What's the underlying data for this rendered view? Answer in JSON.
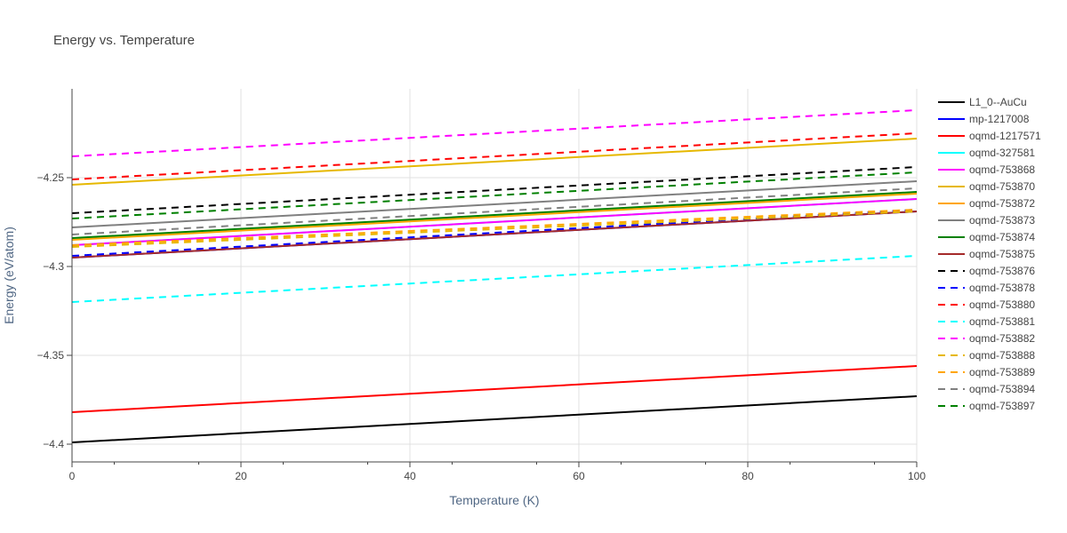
{
  "chart_data": {
    "type": "line",
    "title": "Energy vs. Temperature",
    "xlabel": "Temperature (K)",
    "ylabel": "Energy (eV/atom)",
    "xlim": [
      0,
      100
    ],
    "ylim": [
      -4.41,
      -4.2
    ],
    "x_ticks": [
      0,
      20,
      40,
      60,
      80,
      100
    ],
    "x_tick_labels": [
      "0",
      "20",
      "40",
      "60",
      "80",
      "100"
    ],
    "y_ticks": [
      -4.4,
      -4.35,
      -4.3,
      -4.25
    ],
    "y_tick_labels": [
      "−4.4",
      "−4.35",
      "−4.3",
      "−4.25"
    ],
    "grid": true,
    "legend_position": "right",
    "series": [
      {
        "name": "L1_0--AuCu",
        "color": "#000000",
        "dash": "solid",
        "x": [
          0,
          100
        ],
        "y": [
          -4.399,
          -4.373
        ]
      },
      {
        "name": "mp-1217008",
        "color": "#0000ff",
        "dash": "solid",
        "x": [
          0,
          100
        ],
        "y": [
          -4.295,
          -4.269
        ]
      },
      {
        "name": "oqmd-1217571",
        "color": "#ff0000",
        "dash": "solid",
        "x": [
          0,
          100
        ],
        "y": [
          -4.382,
          -4.356
        ]
      },
      {
        "name": "oqmd-327581",
        "color": "#00ffff",
        "dash": "solid",
        "x": [
          0,
          100
        ],
        "y": [
          -4.288,
          -4.262
        ]
      },
      {
        "name": "oqmd-753868",
        "color": "#ff00ff",
        "dash": "solid",
        "x": [
          0,
          100
        ],
        "y": [
          -4.288,
          -4.262
        ]
      },
      {
        "name": "oqmd-753870",
        "color": "#e6b800",
        "dash": "solid",
        "x": [
          0,
          100
        ],
        "y": [
          -4.254,
          -4.228
        ]
      },
      {
        "name": "oqmd-753872",
        "color": "#ffa500",
        "dash": "solid",
        "x": [
          0,
          100
        ],
        "y": [
          -4.285,
          -4.259
        ]
      },
      {
        "name": "oqmd-753873",
        "color": "#808080",
        "dash": "solid",
        "x": [
          0,
          100
        ],
        "y": [
          -4.278,
          -4.252
        ]
      },
      {
        "name": "oqmd-753874",
        "color": "#008000",
        "dash": "solid",
        "x": [
          0,
          100
        ],
        "y": [
          -4.284,
          -4.258
        ]
      },
      {
        "name": "oqmd-753875",
        "color": "#a52a2a",
        "dash": "solid",
        "x": [
          0,
          100
        ],
        "y": [
          -4.295,
          -4.269
        ]
      },
      {
        "name": "oqmd-753876",
        "color": "#000000",
        "dash": "dash",
        "x": [
          0,
          100
        ],
        "y": [
          -4.27,
          -4.244
        ]
      },
      {
        "name": "oqmd-753878",
        "color": "#0000ff",
        "dash": "dash",
        "x": [
          0,
          100
        ],
        "y": [
          -4.294,
          -4.268
        ]
      },
      {
        "name": "oqmd-753880",
        "color": "#ff0000",
        "dash": "dash",
        "x": [
          0,
          100
        ],
        "y": [
          -4.251,
          -4.225
        ]
      },
      {
        "name": "oqmd-753881",
        "color": "#00ffff",
        "dash": "dash",
        "x": [
          0,
          100
        ],
        "y": [
          -4.32,
          -4.294
        ]
      },
      {
        "name": "oqmd-753882",
        "color": "#ff00ff",
        "dash": "dash",
        "x": [
          0,
          100
        ],
        "y": [
          -4.238,
          -4.212
        ]
      },
      {
        "name": "oqmd-753888",
        "color": "#e6b800",
        "dash": "dash",
        "x": [
          0,
          100
        ],
        "y": [
          -4.289,
          -4.269
        ]
      },
      {
        "name": "oqmd-753889",
        "color": "#ffa500",
        "dash": "dash",
        "x": [
          0,
          100
        ],
        "y": [
          -4.288,
          -4.268
        ]
      },
      {
        "name": "oqmd-753894",
        "color": "#808080",
        "dash": "dash",
        "x": [
          0,
          100
        ],
        "y": [
          -4.282,
          -4.256
        ]
      },
      {
        "name": "oqmd-753897",
        "color": "#008000",
        "dash": "dash",
        "x": [
          0,
          100
        ],
        "y": [
          -4.273,
          -4.247
        ]
      }
    ]
  }
}
